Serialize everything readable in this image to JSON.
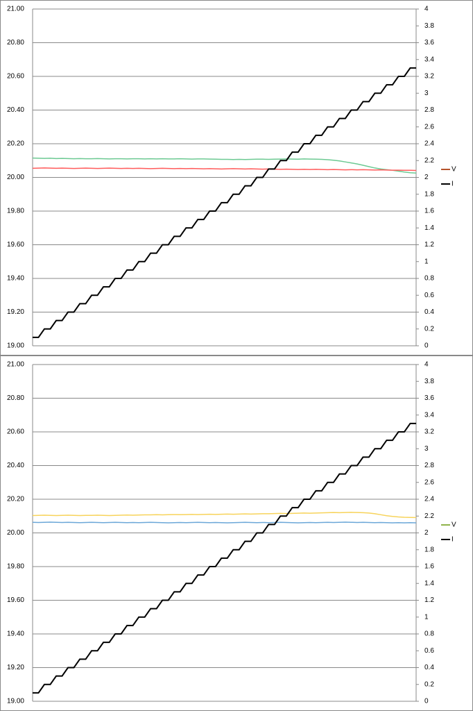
{
  "chart_data": [
    {
      "type": "line",
      "ylim": [
        19,
        21
      ],
      "yticks": [
        {
          "value": 19,
          "label": "19.00"
        },
        {
          "value": 19.2,
          "label": "19.20"
        },
        {
          "value": 19.4,
          "label": "19.40"
        },
        {
          "value": 19.6,
          "label": "19.60"
        },
        {
          "value": 19.8,
          "label": "19.80"
        },
        {
          "value": 20,
          "label": "20.00"
        },
        {
          "value": 20.2,
          "label": "20.20"
        },
        {
          "value": 20.4,
          "label": "20.40"
        },
        {
          "value": 20.6,
          "label": "20.60"
        },
        {
          "value": 20.8,
          "label": "20.80"
        },
        {
          "value": 21,
          "label": "21.00"
        }
      ],
      "y2lim": [
        0,
        4
      ],
      "y2ticks": [
        0,
        0.2,
        0.4,
        0.6,
        0.8,
        1,
        1.2,
        1.4,
        1.6,
        1.8,
        2,
        2.2,
        2.4,
        2.6,
        2.8,
        3,
        3.2,
        3.4,
        3.6,
        3.8,
        4
      ],
      "grid": true,
      "legend": "right",
      "series": [
        {
          "color": "#6cc992",
          "values": [
            20.115,
            20.114,
            20.113,
            20.114,
            20.112,
            20.113,
            20.112,
            20.111,
            20.112,
            20.111,
            20.111,
            20.112,
            20.111,
            20.11,
            20.111,
            20.111,
            20.11,
            20.111,
            20.111,
            20.11,
            20.111,
            20.11,
            20.111,
            20.11,
            20.11,
            20.111,
            20.11,
            20.109,
            20.11,
            20.11,
            20.109,
            20.108,
            20.107,
            20.107,
            20.106,
            20.107,
            20.106,
            20.107,
            20.108,
            20.108,
            20.107,
            20.108,
            20.109,
            20.11,
            20.109,
            20.108,
            20.11,
            20.109,
            20.108,
            20.107,
            20.105,
            20.102,
            20.098,
            20.092,
            20.086,
            20.08,
            20.072,
            20.064,
            20.056,
            20.05,
            20.046,
            20.042,
            20.037,
            20.032,
            20.028,
            20.026
          ]
        },
        {
          "name": "V",
          "color": "#ff5b5b",
          "legend_color": "#b5532a",
          "values": [
            20.054,
            20.055,
            20.056,
            20.055,
            20.054,
            20.055,
            20.054,
            20.053,
            20.054,
            20.055,
            20.054,
            20.053,
            20.054,
            20.055,
            20.054,
            20.053,
            20.054,
            20.053,
            20.054,
            20.053,
            20.052,
            20.053,
            20.054,
            20.053,
            20.052,
            20.053,
            20.052,
            20.053,
            20.052,
            20.051,
            20.052,
            20.051,
            20.05,
            20.051,
            20.052,
            20.051,
            20.05,
            20.051,
            20.05,
            20.049,
            20.05,
            20.049,
            20.048,
            20.049,
            20.048,
            20.047,
            20.048,
            20.047,
            20.048,
            20.047,
            20.046,
            20.047,
            20.046,
            20.045,
            20.046,
            20.045,
            20.046,
            20.045,
            20.044,
            20.045,
            20.044,
            20.043,
            20.043,
            20.042,
            20.042,
            20.041
          ]
        },
        {
          "name": "I",
          "color": "#000000",
          "axis": "y2",
          "values": [
            0.1,
            0.1,
            0.2,
            0.2,
            0.3,
            0.3,
            0.4,
            0.4,
            0.5,
            0.5,
            0.6,
            0.6,
            0.7,
            0.7,
            0.8,
            0.8,
            0.9,
            0.9,
            1,
            1,
            1.1,
            1.1,
            1.2,
            1.2,
            1.3,
            1.3,
            1.4,
            1.4,
            1.5,
            1.5,
            1.6,
            1.6,
            1.7,
            1.7,
            1.8,
            1.8,
            1.9,
            1.9,
            2,
            2,
            2.1,
            2.1,
            2.2,
            2.2,
            2.3,
            2.3,
            2.4,
            2.4,
            2.5,
            2.5,
            2.6,
            2.6,
            2.7,
            2.7,
            2.8,
            2.8,
            2.9,
            2.9,
            3,
            3,
            3.1,
            3.1,
            3.2,
            3.2,
            3.3,
            3.3
          ]
        }
      ]
    },
    {
      "type": "line",
      "ylim": [
        19,
        21
      ],
      "yticks": [
        {
          "value": 19,
          "label": "19.00"
        },
        {
          "value": 19.2,
          "label": "19.20"
        },
        {
          "value": 19.4,
          "label": "19.40"
        },
        {
          "value": 19.6,
          "label": "19.60"
        },
        {
          "value": 19.8,
          "label": "19.80"
        },
        {
          "value": 20,
          "label": "20.00"
        },
        {
          "value": 20.2,
          "label": "20.20"
        },
        {
          "value": 20.4,
          "label": "20.40"
        },
        {
          "value": 20.6,
          "label": "20.60"
        },
        {
          "value": 20.8,
          "label": "20.80"
        },
        {
          "value": 21,
          "label": "21.00"
        }
      ],
      "y2lim": [
        0,
        4
      ],
      "y2ticks": [
        0,
        0.2,
        0.4,
        0.6,
        0.8,
        1,
        1.2,
        1.4,
        1.6,
        1.8,
        2,
        2.2,
        2.4,
        2.6,
        2.8,
        3,
        3.2,
        3.4,
        3.6,
        3.8,
        4
      ],
      "grid": true,
      "legend": "right",
      "series": [
        {
          "color": "#f7d35a",
          "values": [
            20.103,
            20.104,
            20.105,
            20.104,
            20.103,
            20.104,
            20.105,
            20.104,
            20.103,
            20.104,
            20.104,
            20.105,
            20.104,
            20.103,
            20.104,
            20.105,
            20.106,
            20.105,
            20.106,
            20.107,
            20.107,
            20.108,
            20.107,
            20.108,
            20.109,
            20.108,
            20.109,
            20.11,
            20.109,
            20.11,
            20.111,
            20.11,
            20.111,
            20.112,
            20.111,
            20.112,
            20.113,
            20.112,
            20.113,
            20.114,
            20.114,
            20.115,
            20.116,
            20.115,
            20.116,
            20.117,
            20.118,
            20.117,
            20.118,
            20.119,
            20.12,
            20.121,
            20.12,
            20.121,
            20.122,
            20.121,
            20.12,
            20.118,
            20.114,
            20.108,
            20.102,
            20.098,
            20.095,
            20.093,
            20.092,
            20.091
          ]
        },
        {
          "name": "V",
          "color": "#6ba7d8",
          "legend_color": "#8fb34a",
          "values": [
            20.063,
            20.062,
            20.063,
            20.064,
            20.063,
            20.062,
            20.063,
            20.062,
            20.061,
            20.062,
            20.063,
            20.062,
            20.061,
            20.062,
            20.063,
            20.062,
            20.061,
            20.062,
            20.061,
            20.062,
            20.063,
            20.062,
            20.061,
            20.06,
            20.061,
            20.062,
            20.061,
            20.062,
            20.063,
            20.062,
            20.061,
            20.062,
            20.061,
            20.06,
            20.061,
            20.062,
            20.063,
            20.062,
            20.061,
            20.062,
            20.061,
            20.062,
            20.063,
            20.062,
            20.061,
            20.06,
            20.061,
            20.062,
            20.061,
            20.062,
            20.063,
            20.062,
            20.063,
            20.064,
            20.063,
            20.062,
            20.063,
            20.062,
            20.061,
            20.062,
            20.061,
            20.06,
            20.061,
            20.06,
            20.061,
            20.06
          ]
        },
        {
          "name": "I",
          "color": "#000000",
          "axis": "y2",
          "values": [
            0.1,
            0.1,
            0.2,
            0.2,
            0.3,
            0.3,
            0.4,
            0.4,
            0.5,
            0.5,
            0.6,
            0.6,
            0.7,
            0.7,
            0.8,
            0.8,
            0.9,
            0.9,
            1,
            1,
            1.1,
            1.1,
            1.2,
            1.2,
            1.3,
            1.3,
            1.4,
            1.4,
            1.5,
            1.5,
            1.6,
            1.6,
            1.7,
            1.7,
            1.8,
            1.8,
            1.9,
            1.9,
            2,
            2,
            2.1,
            2.1,
            2.2,
            2.2,
            2.3,
            2.3,
            2.4,
            2.4,
            2.5,
            2.5,
            2.6,
            2.6,
            2.7,
            2.7,
            2.8,
            2.8,
            2.9,
            2.9,
            3,
            3,
            3.1,
            3.1,
            3.2,
            3.2,
            3.3,
            3.3
          ]
        }
      ]
    }
  ]
}
